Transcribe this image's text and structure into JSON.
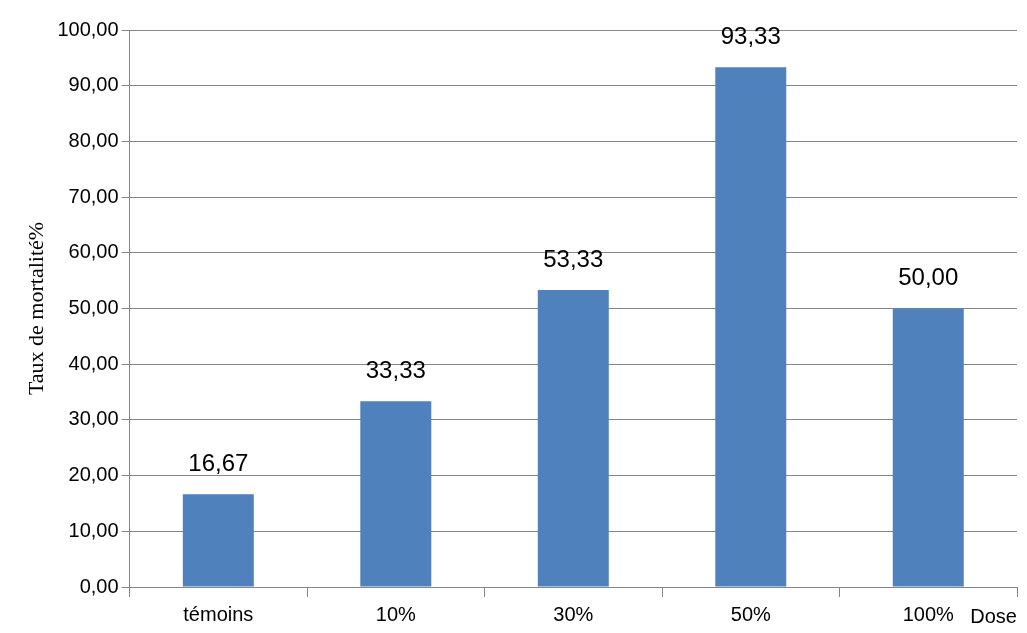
{
  "chart_data": {
    "type": "bar",
    "categories": [
      "témoins",
      "10%",
      "30%",
      "50%",
      "100%"
    ],
    "values": [
      16.67,
      33.33,
      53.33,
      93.33,
      50.0
    ],
    "value_labels": [
      "16,67",
      "33,33",
      "53,33",
      "93,33",
      "50,00"
    ],
    "color": "#4f81bd",
    "xlabel": "Dose",
    "ylabel": "Taux de mortalité%",
    "ylim": [
      0,
      100
    ],
    "yticks": [
      {
        "value": 0,
        "label": "0,00"
      },
      {
        "value": 10,
        "label": "10,00"
      },
      {
        "value": 20,
        "label": "20,00"
      },
      {
        "value": 30,
        "label": "30,00"
      },
      {
        "value": 40,
        "label": "40,00"
      },
      {
        "value": 50,
        "label": "50,00"
      },
      {
        "value": 60,
        "label": "60,00"
      },
      {
        "value": 70,
        "label": "70,00"
      },
      {
        "value": 80,
        "label": "80,00"
      },
      {
        "value": 90,
        "label": "90,00"
      },
      {
        "value": 100,
        "label": "100,00"
      }
    ],
    "grid": "y",
    "legend": false
  }
}
